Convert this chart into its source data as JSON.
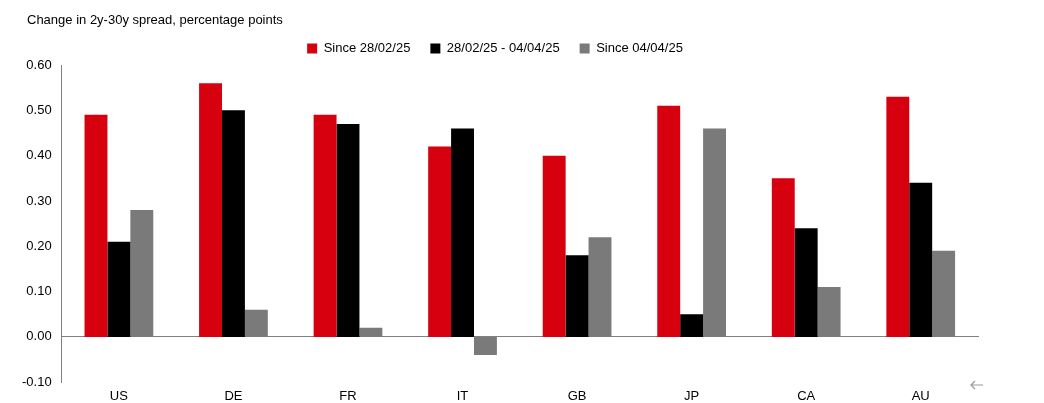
{
  "chart_data": {
    "type": "bar",
    "ylabel": "Change in 2y-30y spread, percentage points",
    "categories": [
      "US",
      "DE",
      "FR",
      "IT",
      "GB",
      "JP",
      "CA",
      "AU"
    ],
    "series": [
      {
        "name": "Since 28/02/25",
        "color": "#d7000f",
        "values": [
          0.49,
          0.56,
          0.49,
          0.42,
          0.4,
          0.51,
          0.35,
          0.53
        ]
      },
      {
        "name": "28/02/25 - 04/04/25",
        "color": "#000000",
        "values": [
          0.21,
          0.5,
          0.47,
          0.46,
          0.18,
          0.05,
          0.24,
          0.34
        ]
      },
      {
        "name": "Since 04/04/25",
        "color": "#7a7a7a",
        "values": [
          0.28,
          0.06,
          0.02,
          -0.04,
          0.22,
          0.46,
          0.11,
          0.19
        ]
      }
    ],
    "ylim": [
      -0.1,
      0.6
    ],
    "yticks": [
      {
        "value": -0.1,
        "label": "-0.10"
      },
      {
        "value": 0,
        "label": "0.00"
      },
      {
        "value": 0.1,
        "label": "0.10"
      },
      {
        "value": 0.2,
        "label": "0.20"
      },
      {
        "value": 0.3,
        "label": "0.30"
      },
      {
        "value": 0.4,
        "label": "0.40"
      },
      {
        "value": 0.5,
        "label": "0.50"
      },
      {
        "value": 0.6,
        "label": "0.60"
      }
    ],
    "legend": "top"
  }
}
